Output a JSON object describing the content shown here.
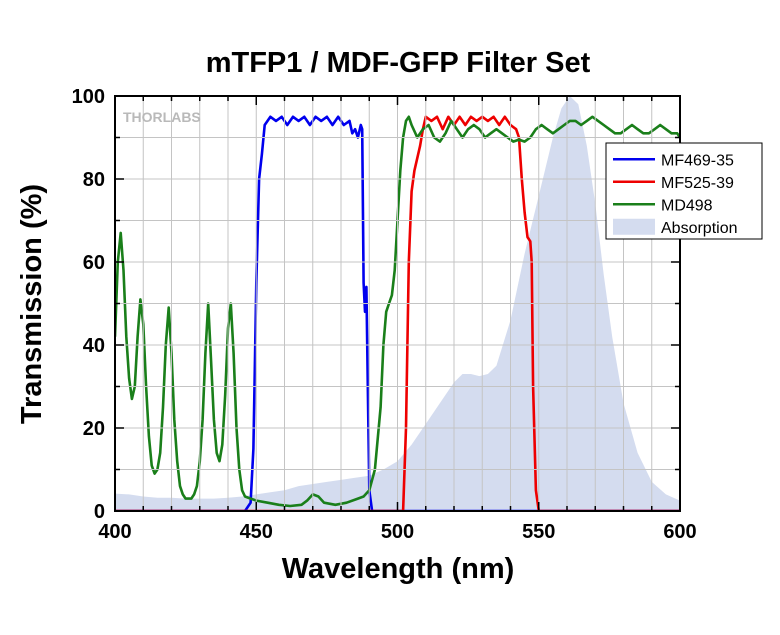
{
  "chart_data": {
    "type": "line",
    "title": "mTFP1 / MDF-GFP Filter Set",
    "xlabel": "Wavelength (nm)",
    "ylabel": "Transmission (%)",
    "xlim": [
      400,
      600
    ],
    "ylim": [
      0,
      100
    ],
    "x_ticks": [
      400,
      450,
      500,
      550,
      600
    ],
    "y_ticks": [
      0,
      20,
      40,
      60,
      80,
      100
    ],
    "grid": true,
    "legend_position": "top-right",
    "watermark": "THORLABS",
    "series": [
      {
        "name": "MF469-35",
        "color": "#0000ee",
        "kind": "line",
        "points": [
          [
            400,
            0
          ],
          [
            446,
            0
          ],
          [
            448,
            2
          ],
          [
            449,
            15
          ],
          [
            450,
            55
          ],
          [
            451,
            80
          ],
          [
            452,
            86
          ],
          [
            453,
            93
          ],
          [
            455,
            95
          ],
          [
            457,
            94
          ],
          [
            459,
            95
          ],
          [
            461,
            93
          ],
          [
            463,
            95
          ],
          [
            465,
            94
          ],
          [
            467,
            95
          ],
          [
            469,
            93
          ],
          [
            471,
            95
          ],
          [
            473,
            94
          ],
          [
            475,
            95
          ],
          [
            477,
            93
          ],
          [
            479,
            95
          ],
          [
            481,
            93
          ],
          [
            483,
            94
          ],
          [
            484,
            91
          ],
          [
            485,
            92
          ],
          [
            486,
            90
          ],
          [
            487,
            93
          ],
          [
            487.5,
            92
          ],
          [
            488,
            55
          ],
          [
            488.5,
            48
          ],
          [
            489,
            54
          ],
          [
            489.5,
            30
          ],
          [
            490,
            5
          ],
          [
            491,
            0
          ],
          [
            600,
            0
          ]
        ]
      },
      {
        "name": "MF525-39",
        "color": "#ee0000",
        "kind": "line",
        "points": [
          [
            400,
            0
          ],
          [
            502,
            0
          ],
          [
            503,
            20
          ],
          [
            504,
            60
          ],
          [
            505,
            77
          ],
          [
            506,
            82
          ],
          [
            508,
            88
          ],
          [
            509,
            92
          ],
          [
            510,
            95
          ],
          [
            512,
            94
          ],
          [
            514,
            95
          ],
          [
            516,
            92
          ],
          [
            518,
            95
          ],
          [
            520,
            93
          ],
          [
            522,
            95
          ],
          [
            524,
            93
          ],
          [
            526,
            95
          ],
          [
            528,
            94
          ],
          [
            530,
            95
          ],
          [
            532,
            94
          ],
          [
            534,
            95
          ],
          [
            536,
            93
          ],
          [
            538,
            95
          ],
          [
            540,
            93
          ],
          [
            542,
            92
          ],
          [
            543,
            90
          ],
          [
            544,
            80
          ],
          [
            545,
            72
          ],
          [
            546,
            66
          ],
          [
            547,
            65
          ],
          [
            547.5,
            60
          ],
          [
            548,
            30
          ],
          [
            549,
            5
          ],
          [
            550,
            0
          ],
          [
            600,
            0
          ]
        ]
      },
      {
        "name": "MD498",
        "color": "#1a7f1a",
        "kind": "line",
        "points": [
          [
            400,
            42
          ],
          [
            401,
            60
          ],
          [
            402,
            67
          ],
          [
            403,
            58
          ],
          [
            404,
            42
          ],
          [
            405,
            32
          ],
          [
            406,
            27
          ],
          [
            407,
            30
          ],
          [
            408,
            42
          ],
          [
            409,
            51
          ],
          [
            410,
            45
          ],
          [
            411,
            30
          ],
          [
            412,
            18
          ],
          [
            413,
            11
          ],
          [
            414,
            9
          ],
          [
            415,
            10
          ],
          [
            416,
            14
          ],
          [
            417,
            25
          ],
          [
            418,
            40
          ],
          [
            419,
            49
          ],
          [
            420,
            38
          ],
          [
            421,
            22
          ],
          [
            422,
            12
          ],
          [
            423,
            6
          ],
          [
            424,
            4
          ],
          [
            425,
            3
          ],
          [
            427,
            3
          ],
          [
            428,
            4
          ],
          [
            429,
            6
          ],
          [
            430,
            12
          ],
          [
            431,
            22
          ],
          [
            432,
            38
          ],
          [
            433,
            50
          ],
          [
            434,
            36
          ],
          [
            435,
            22
          ],
          [
            436,
            14
          ],
          [
            437,
            12
          ],
          [
            438,
            16
          ],
          [
            439,
            28
          ],
          [
            440,
            44
          ],
          [
            441,
            50
          ],
          [
            442,
            38
          ],
          [
            443,
            20
          ],
          [
            444,
            10
          ],
          [
            445,
            5
          ],
          [
            446,
            3.5
          ],
          [
            448,
            3
          ],
          [
            450,
            2.5
          ],
          [
            454,
            2
          ],
          [
            458,
            1.5
          ],
          [
            462,
            1.2
          ],
          [
            466,
            1.5
          ],
          [
            468,
            2.5
          ],
          [
            470,
            4
          ],
          [
            472,
            3.5
          ],
          [
            474,
            2
          ],
          [
            478,
            1.5
          ],
          [
            482,
            2
          ],
          [
            486,
            3
          ],
          [
            488,
            3.5
          ],
          [
            490,
            5
          ],
          [
            492,
            10
          ],
          [
            494,
            25
          ],
          [
            495,
            40
          ],
          [
            496,
            48
          ],
          [
            497,
            50
          ],
          [
            498,
            52
          ],
          [
            499,
            58
          ],
          [
            500,
            70
          ],
          [
            501,
            82
          ],
          [
            502,
            90
          ],
          [
            503,
            94
          ],
          [
            504,
            95
          ],
          [
            505,
            93
          ],
          [
            507,
            90
          ],
          [
            509,
            92
          ],
          [
            511,
            93
          ],
          [
            513,
            90
          ],
          [
            515,
            89
          ],
          [
            517,
            91
          ],
          [
            519,
            94
          ],
          [
            521,
            92
          ],
          [
            523,
            90
          ],
          [
            525,
            92
          ],
          [
            527,
            93
          ],
          [
            529,
            92
          ],
          [
            531,
            90
          ],
          [
            533,
            91
          ],
          [
            535,
            92
          ],
          [
            537,
            91
          ],
          [
            539,
            90
          ],
          [
            541,
            89
          ],
          [
            543,
            89.5
          ],
          [
            545,
            89
          ],
          [
            547,
            90
          ],
          [
            549,
            92
          ],
          [
            551,
            93
          ],
          [
            553,
            92
          ],
          [
            555,
            91
          ],
          [
            557,
            92
          ],
          [
            559,
            93
          ],
          [
            561,
            94
          ],
          [
            563,
            94
          ],
          [
            565,
            93
          ],
          [
            567,
            94
          ],
          [
            569,
            95
          ],
          [
            571,
            94
          ],
          [
            573,
            93
          ],
          [
            575,
            92
          ],
          [
            577,
            91
          ],
          [
            579,
            91
          ],
          [
            581,
            92
          ],
          [
            583,
            93
          ],
          [
            585,
            92
          ],
          [
            587,
            91
          ],
          [
            589,
            91
          ],
          [
            591,
            92
          ],
          [
            593,
            93
          ],
          [
            595,
            92
          ],
          [
            597,
            91
          ],
          [
            599,
            91
          ],
          [
            600,
            90
          ]
        ]
      },
      {
        "name": "Absorption",
        "color": "#d4dcef",
        "kind": "area",
        "points": [
          [
            400,
            4.2
          ],
          [
            405,
            4
          ],
          [
            410,
            3.5
          ],
          [
            415,
            3.2
          ],
          [
            420,
            3.2
          ],
          [
            425,
            3
          ],
          [
            430,
            3
          ],
          [
            435,
            3
          ],
          [
            440,
            3.2
          ],
          [
            445,
            3.5
          ],
          [
            450,
            4
          ],
          [
            455,
            4.5
          ],
          [
            460,
            5
          ],
          [
            465,
            6
          ],
          [
            470,
            6.5
          ],
          [
            475,
            7
          ],
          [
            480,
            7.5
          ],
          [
            485,
            8
          ],
          [
            490,
            8.5
          ],
          [
            495,
            10
          ],
          [
            500,
            12
          ],
          [
            505,
            16
          ],
          [
            510,
            21
          ],
          [
            515,
            26
          ],
          [
            520,
            31
          ],
          [
            523,
            33
          ],
          [
            526,
            33
          ],
          [
            529,
            32.5
          ],
          [
            532,
            33
          ],
          [
            535,
            35
          ],
          [
            540,
            46
          ],
          [
            545,
            62
          ],
          [
            550,
            76
          ],
          [
            555,
            90
          ],
          [
            558,
            97
          ],
          [
            561,
            100
          ],
          [
            564,
            98
          ],
          [
            567,
            88
          ],
          [
            570,
            74
          ],
          [
            573,
            57
          ],
          [
            576,
            42
          ],
          [
            580,
            26
          ],
          [
            585,
            14
          ],
          [
            590,
            7
          ],
          [
            595,
            4
          ],
          [
            600,
            2.5
          ]
        ]
      }
    ]
  }
}
